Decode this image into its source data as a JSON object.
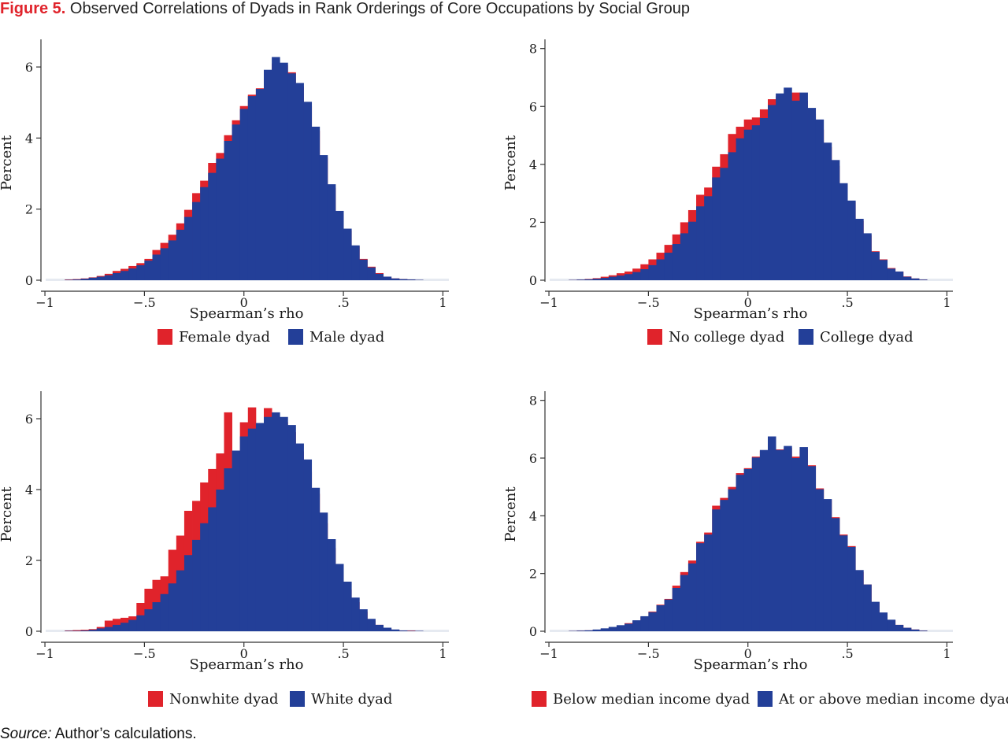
{
  "figure": {
    "label": "Figure 5.",
    "title": "Observed Correlations of Dyads in Rank Orderings of Core Occupations by Social Group",
    "source_label": "Source:",
    "source_text": "Author’s calculations."
  },
  "colors": {
    "series_a": "#e0232b",
    "series_b": "#233f98",
    "axis": "#333333"
  },
  "chart_data": [
    {
      "type": "bar",
      "bar_style": "overlaid histogram",
      "xlabel": "Spearman’s rho",
      "ylabel": "Percent",
      "xlim": [
        -1.02,
        1.03
      ],
      "ylim": [
        0,
        6.6
      ],
      "xticks": [
        -1,
        -0.5,
        0,
        0.5,
        1
      ],
      "xtick_labels": [
        "−1",
        "−.5",
        "0",
        ".5",
        "1"
      ],
      "yticks": [
        0,
        2,
        4,
        6
      ],
      "bin_width": 0.04,
      "x": [
        -0.88,
        -0.84,
        -0.8,
        -0.76,
        -0.72,
        -0.68,
        -0.64,
        -0.6,
        -0.56,
        -0.52,
        -0.48,
        -0.44,
        -0.4,
        -0.36,
        -0.32,
        -0.28,
        -0.24,
        -0.2,
        -0.16,
        -0.12,
        -0.08,
        -0.04,
        0,
        0.04,
        0.08,
        0.12,
        0.16,
        0.2,
        0.24,
        0.28,
        0.32,
        0.36,
        0.4,
        0.44,
        0.48,
        0.52,
        0.56,
        0.6,
        0.64,
        0.68,
        0.72,
        0.76,
        0.8,
        0.84,
        0.88
      ],
      "series": [
        {
          "name": "Female dyad",
          "values": [
            0.02,
            0.03,
            0.05,
            0.08,
            0.12,
            0.18,
            0.26,
            0.32,
            0.4,
            0.48,
            0.6,
            0.85,
            1.05,
            1.28,
            1.6,
            1.98,
            2.45,
            2.8,
            3.3,
            3.58,
            4.08,
            4.5,
            4.9,
            5.22,
            5.4,
            5.9,
            6.1,
            6.05,
            5.85,
            5.45,
            4.9,
            4.2,
            3.45,
            2.6,
            1.85,
            1.4,
            0.95,
            0.6,
            0.38,
            0.2,
            0.1,
            0.05,
            0.03,
            0.02,
            0.01
          ]
        },
        {
          "name": "Male dyad",
          "values": [
            0.01,
            0.02,
            0.04,
            0.07,
            0.1,
            0.14,
            0.2,
            0.26,
            0.33,
            0.42,
            0.55,
            0.72,
            0.9,
            1.12,
            1.42,
            1.78,
            2.2,
            2.62,
            3.02,
            3.42,
            3.92,
            4.38,
            4.82,
            5.18,
            5.38,
            5.92,
            6.28,
            6.12,
            5.82,
            5.55,
            5.02,
            4.32,
            3.52,
            2.7,
            1.95,
            1.45,
            0.98,
            0.58,
            0.36,
            0.18,
            0.1,
            0.05,
            0.03,
            0.02,
            0.01
          ]
        }
      ]
    },
    {
      "type": "bar",
      "bar_style": "overlaid histogram",
      "xlabel": "Spearman’s rho",
      "ylabel": "Percent",
      "xlim": [
        -1.02,
        1.03
      ],
      "ylim": [
        0,
        8.1
      ],
      "xticks": [
        -1,
        -0.5,
        0,
        0.5,
        1
      ],
      "xtick_labels": [
        "−1",
        "−.5",
        "0",
        ".5",
        "1"
      ],
      "yticks": [
        0,
        2,
        4,
        6,
        8
      ],
      "bin_width": 0.04,
      "x": [
        -0.88,
        -0.84,
        -0.8,
        -0.76,
        -0.72,
        -0.68,
        -0.64,
        -0.6,
        -0.56,
        -0.52,
        -0.48,
        -0.44,
        -0.4,
        -0.36,
        -0.32,
        -0.28,
        -0.24,
        -0.2,
        -0.16,
        -0.12,
        -0.08,
        -0.04,
        0,
        0.04,
        0.08,
        0.12,
        0.16,
        0.2,
        0.24,
        0.28,
        0.32,
        0.36,
        0.4,
        0.44,
        0.48,
        0.52,
        0.56,
        0.6,
        0.64,
        0.68,
        0.72,
        0.76,
        0.8,
        0.84,
        0.88
      ],
      "series": [
        {
          "name": "No college dyad",
          "values": [
            0.01,
            0.02,
            0.04,
            0.07,
            0.12,
            0.17,
            0.24,
            0.3,
            0.4,
            0.55,
            0.72,
            0.95,
            1.22,
            1.58,
            2,
            2.42,
            2.95,
            3.2,
            3.92,
            4.35,
            5.05,
            5.3,
            5.55,
            5.62,
            5.9,
            6.25,
            6.35,
            6.42,
            6.48,
            6.2,
            5.75,
            5.2,
            4.6,
            3.95,
            3.3,
            2.7,
            2.05,
            1.55,
            1,
            0.72,
            0.42,
            0.3,
            0.13,
            0.06,
            0.02
          ]
        },
        {
          "name": "College dyad",
          "values": [
            0.01,
            0.02,
            0.03,
            0.05,
            0.08,
            0.12,
            0.16,
            0.21,
            0.28,
            0.38,
            0.52,
            0.72,
            0.95,
            1.25,
            1.62,
            2.02,
            2.55,
            2.9,
            3.55,
            3.88,
            4.42,
            4.9,
            5.2,
            5.35,
            5.6,
            6.05,
            6.45,
            6.65,
            6.2,
            6.48,
            5.95,
            5.55,
            4.75,
            4.15,
            3.35,
            2.75,
            2.12,
            1.62,
            0.98,
            0.7,
            0.4,
            0.3,
            0.12,
            0.06,
            0.02
          ]
        }
      ]
    },
    {
      "type": "bar",
      "bar_style": "overlaid histogram",
      "xlabel": "Spearman’s rho",
      "ylabel": "Percent",
      "xlim": [
        -1.02,
        1.03
      ],
      "ylim": [
        0,
        6.6
      ],
      "xticks": [
        -1,
        -0.5,
        0,
        0.5,
        1
      ],
      "xtick_labels": [
        "−1",
        "−.5",
        "0",
        ".5",
        "1"
      ],
      "yticks": [
        0,
        2,
        4,
        6
      ],
      "bin_width": 0.04,
      "x": [
        -0.88,
        -0.84,
        -0.8,
        -0.76,
        -0.72,
        -0.68,
        -0.64,
        -0.6,
        -0.56,
        -0.52,
        -0.48,
        -0.44,
        -0.4,
        -0.36,
        -0.32,
        -0.28,
        -0.24,
        -0.2,
        -0.16,
        -0.12,
        -0.08,
        -0.04,
        0,
        0.04,
        0.08,
        0.12,
        0.16,
        0.2,
        0.24,
        0.28,
        0.32,
        0.36,
        0.4,
        0.44,
        0.48,
        0.52,
        0.56,
        0.6,
        0.64,
        0.68,
        0.72,
        0.76,
        0.8,
        0.84,
        0.88
      ],
      "series": [
        {
          "name": "Nonwhite dyad",
          "values": [
            0.02,
            0.03,
            0.04,
            0.06,
            0.12,
            0.3,
            0.35,
            0.38,
            0.42,
            0.8,
            1.2,
            1.45,
            1.55,
            2.3,
            2.7,
            3.4,
            3.68,
            4.2,
            4.58,
            5.02,
            6.18,
            4.38,
            5.9,
            6.32,
            5.72,
            6.3,
            6.05,
            5.9,
            5.62,
            5.08,
            4.5,
            3.88,
            3.05,
            2.35,
            1.68,
            1.18,
            0.82,
            0.55,
            0.3,
            0.18,
            0.08,
            0.04,
            0.02,
            0.02,
            0.01
          ]
        },
        {
          "name": "White dyad",
          "values": [
            0.01,
            0.01,
            0.02,
            0.04,
            0.08,
            0.12,
            0.18,
            0.24,
            0.32,
            0.45,
            0.62,
            0.82,
            1.05,
            1.35,
            1.72,
            2.15,
            2.58,
            3.05,
            3.5,
            4,
            4.6,
            5.1,
            5.5,
            5.72,
            5.88,
            6.05,
            6.18,
            6.05,
            5.82,
            5.3,
            4.85,
            4.05,
            3.35,
            2.6,
            1.9,
            1.4,
            0.95,
            0.62,
            0.35,
            0.18,
            0.1,
            0.05,
            0.02,
            0.01,
            0.01
          ]
        }
      ]
    },
    {
      "type": "bar",
      "bar_style": "overlaid histogram",
      "xlabel": "Spearman’s rho",
      "ylabel": "Percent",
      "xlim": [
        -1.02,
        1.03
      ],
      "ylim": [
        0,
        8.1
      ],
      "xticks": [
        -1,
        -0.5,
        0,
        0.5,
        1
      ],
      "xtick_labels": [
        "−1",
        "−.5",
        "0",
        ".5",
        "1"
      ],
      "yticks": [
        0,
        2,
        4,
        6,
        8
      ],
      "bin_width": 0.04,
      "x": [
        -0.88,
        -0.84,
        -0.8,
        -0.76,
        -0.72,
        -0.68,
        -0.64,
        -0.6,
        -0.56,
        -0.52,
        -0.48,
        -0.44,
        -0.4,
        -0.36,
        -0.32,
        -0.28,
        -0.24,
        -0.2,
        -0.16,
        -0.12,
        -0.08,
        -0.04,
        0,
        0.04,
        0.08,
        0.12,
        0.16,
        0.2,
        0.24,
        0.28,
        0.32,
        0.36,
        0.4,
        0.44,
        0.48,
        0.52,
        0.56,
        0.6,
        0.64,
        0.68,
        0.72,
        0.76,
        0.8,
        0.84,
        0.88
      ],
      "series": [
        {
          "name": "Below median income dyad",
          "values": [
            0.01,
            0.02,
            0.03,
            0.05,
            0.08,
            0.12,
            0.18,
            0.28,
            0.35,
            0.5,
            0.68,
            0.92,
            1.12,
            1.58,
            2.05,
            2.45,
            3.1,
            3.42,
            4.35,
            4.62,
            5,
            5.48,
            5.65,
            6.05,
            6.25,
            6.62,
            6.3,
            6.35,
            6.05,
            6.3,
            5.75,
            4.95,
            4.55,
            3.95,
            3.35,
            2.95,
            2.05,
            1.62,
            1,
            0.62,
            0.38,
            0.22,
            0.12,
            0.06,
            0.02
          ]
        },
        {
          "name": "At or above median income dyad",
          "values": [
            0.01,
            0.02,
            0.03,
            0.06,
            0.1,
            0.15,
            0.21,
            0.26,
            0.38,
            0.52,
            0.66,
            0.9,
            1.1,
            1.5,
            1.95,
            2.35,
            3.05,
            3.35,
            4.22,
            4.55,
            4.92,
            5.42,
            5.62,
            6.02,
            6.28,
            6.75,
            6.28,
            6.42,
            6,
            6.38,
            5.72,
            4.92,
            4.58,
            3.92,
            3.32,
            2.92,
            2.12,
            1.62,
            1.02,
            0.65,
            0.4,
            0.22,
            0.12,
            0.06,
            0.02
          ]
        }
      ]
    }
  ]
}
